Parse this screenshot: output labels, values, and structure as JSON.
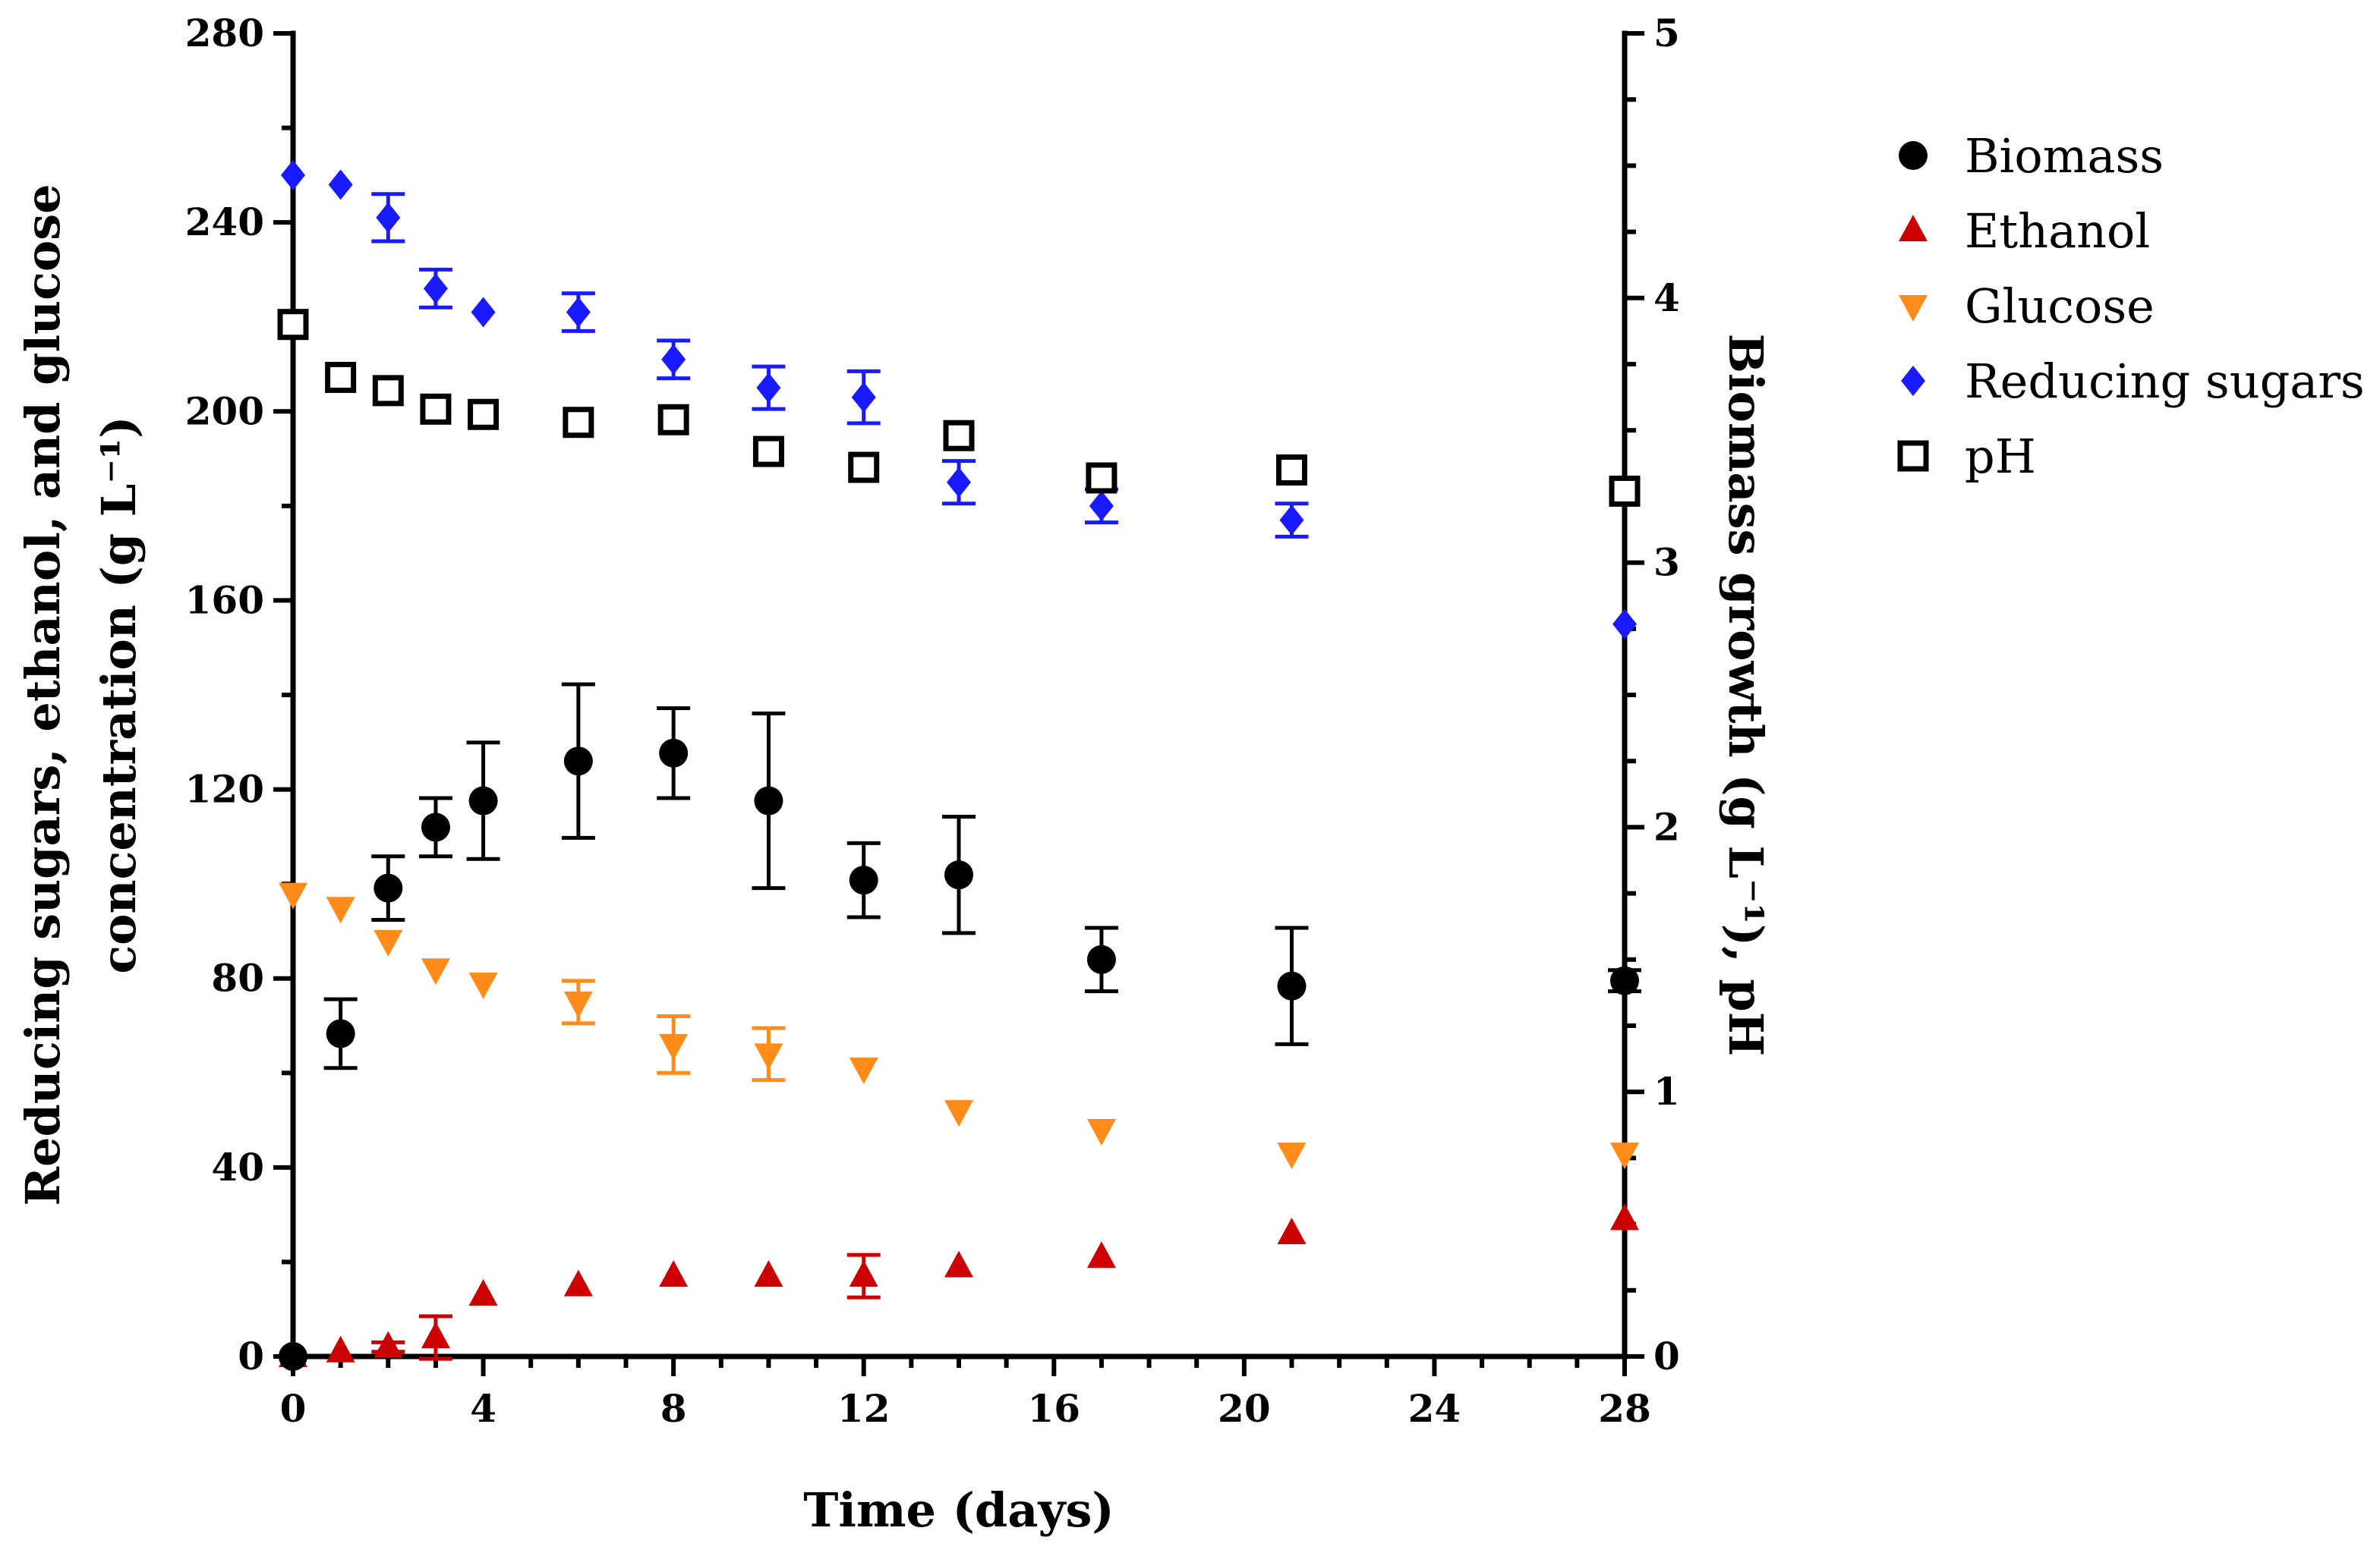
{
  "chart_data": {
    "type": "scatter",
    "xlabel": "Time (days)",
    "ylabel_left": [
      "Reducing sugars, ethanol, and glucose",
      "concentration (g L⁻¹)"
    ],
    "ylabel_right": "Biomass growth (g L⁻¹), pH",
    "xlim": [
      0,
      28
    ],
    "ylim_left": [
      0,
      280
    ],
    "ylim_right": [
      0,
      5
    ],
    "x_ticks": [
      0,
      4,
      8,
      12,
      16,
      20,
      24,
      28
    ],
    "x_tick_labels": [
      "0",
      "4",
      "8",
      "12",
      "16",
      "20",
      "24",
      "28"
    ],
    "y_left_ticks": [
      0,
      40,
      80,
      120,
      160,
      200,
      240,
      280
    ],
    "y_left_tick_labels": [
      "0",
      "40",
      "80",
      "120",
      "160",
      "200",
      "240",
      "280"
    ],
    "y_right_ticks": [
      0,
      1,
      2,
      3,
      4,
      5
    ],
    "y_right_tick_labels": [
      "0",
      "1",
      "2",
      "3",
      "4",
      "5"
    ],
    "legend_position": "top-right outside",
    "series": [
      {
        "name": "Biomass",
        "axis": "right",
        "marker": "circle",
        "color": "#000000",
        "x": [
          0,
          1,
          2,
          3,
          4,
          6,
          8,
          10,
          12,
          14,
          17,
          21,
          28
        ],
        "y": [
          0,
          1.22,
          1.77,
          2.0,
          2.1,
          2.25,
          2.28,
          2.1,
          1.8,
          1.82,
          1.5,
          1.4,
          1.42
        ],
        "err": [
          0,
          0.13,
          0.12,
          0.11,
          0.22,
          0.29,
          0.17,
          0.33,
          0.14,
          0.22,
          0.12,
          0.22,
          0.04
        ]
      },
      {
        "name": "Ethanol",
        "axis": "left",
        "marker": "triangle-up",
        "color": "#cc0000",
        "x": [
          0,
          1,
          2,
          3,
          4,
          6,
          8,
          10,
          12,
          14,
          17,
          21,
          28
        ],
        "y": [
          0,
          1,
          2,
          4,
          13,
          15,
          17,
          17,
          17,
          19,
          21,
          26,
          29
        ],
        "err": [
          0,
          0,
          1,
          4.5,
          0,
          0,
          0,
          0,
          4.5,
          0,
          0,
          0,
          0
        ]
      },
      {
        "name": "Glucose",
        "axis": "left",
        "marker": "triangle-down",
        "color": "#ff8c1a",
        "x": [
          0,
          1,
          2,
          3,
          4,
          6,
          8,
          10,
          12,
          14,
          17,
          21,
          28
        ],
        "y": [
          98,
          95,
          88,
          82,
          79,
          75,
          66,
          64,
          61,
          52,
          48,
          43,
          43
        ],
        "err": [
          0,
          0,
          0,
          0,
          0,
          4.5,
          6,
          5.5,
          0,
          0,
          0,
          0,
          0
        ]
      },
      {
        "name": "Reducing sugars",
        "axis": "left",
        "marker": "diamond",
        "color": "#1a1aff",
        "x": [
          0,
          1,
          2,
          3,
          4,
          6,
          8,
          10,
          12,
          14,
          17,
          21,
          28
        ],
        "y": [
          250,
          248,
          241,
          226,
          221,
          221,
          211,
          205,
          203,
          185,
          180,
          177,
          155
        ],
        "err": [
          0,
          0,
          5,
          4,
          0,
          4,
          4,
          4.5,
          5.5,
          4.5,
          3.5,
          3.5,
          0
        ]
      },
      {
        "name": "pH",
        "axis": "right",
        "marker": "square-open",
        "color": "#000000",
        "x": [
          0,
          1,
          2,
          3,
          4,
          6,
          8,
          10,
          12,
          14,
          17,
          21,
          28
        ],
        "y": [
          3.9,
          3.7,
          3.65,
          3.58,
          3.56,
          3.53,
          3.54,
          3.42,
          3.36,
          3.48,
          3.32,
          3.35,
          3.27
        ],
        "err": [
          0,
          0,
          0,
          0,
          0,
          0,
          0,
          0,
          0,
          0,
          0,
          0,
          0
        ]
      }
    ]
  }
}
